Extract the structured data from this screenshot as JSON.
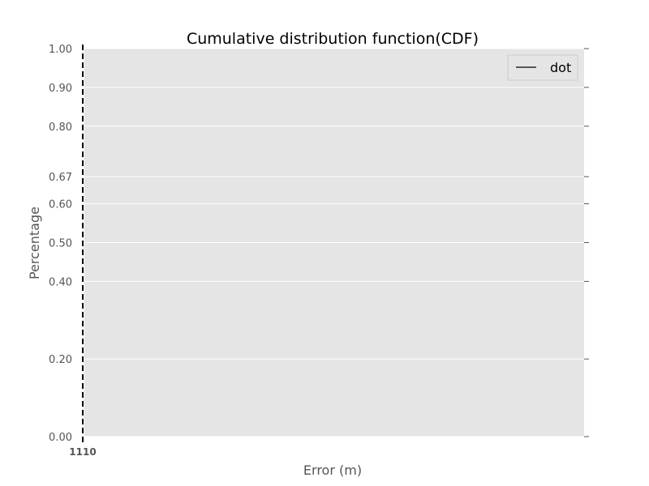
{
  "chart_data": {
    "type": "line",
    "title": "Cumulative distribution function(CDF)",
    "xlabel": "Error (m)",
    "ylabel": "Percentage",
    "ylim": [
      0,
      1
    ],
    "yticks": [
      "0.00",
      "0.20",
      "0.40",
      "0.50",
      "0.60",
      "0.67",
      "0.80",
      "0.90",
      "1.00"
    ],
    "ytick_values": [
      0,
      0.2,
      0.4,
      0.5,
      0.6,
      0.67,
      0.8,
      0.9,
      1.0
    ],
    "xtick_text": "1110",
    "grid": true,
    "legend_position": "top-right",
    "series": [
      {
        "name": "dot",
        "style": "dashed",
        "color": "#000000",
        "x": [
          0,
          0
        ],
        "y": [
          0,
          1
        ]
      }
    ],
    "colors": {
      "plot_bg": "#e5e5e5",
      "grid": "#ffffff",
      "tick": "#555555"
    }
  }
}
